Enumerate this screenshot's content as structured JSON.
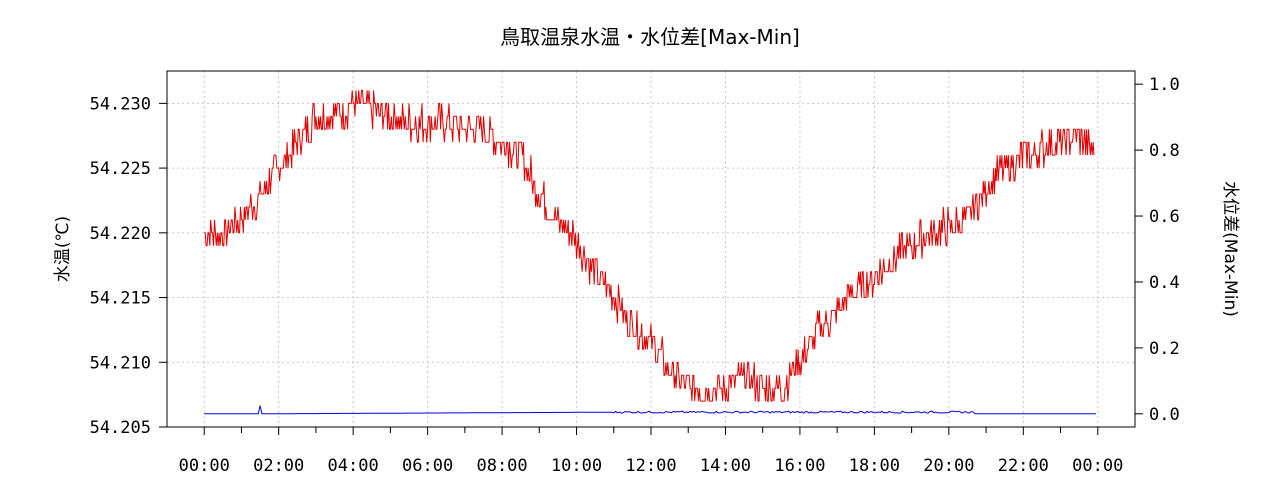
{
  "chart_data": {
    "type": "line",
    "title": "鳥取温泉水温・水位差[Max-Min]",
    "ylabel_left": "水温(℃)",
    "ylabel_right": "水位差(Max-Min)",
    "x_ticks": [
      "00:00",
      "02:00",
      "04:00",
      "06:00",
      "08:00",
      "10:00",
      "12:00",
      "14:00",
      "16:00",
      "18:00",
      "20:00",
      "22:00",
      "00:00"
    ],
    "x_range_hours": [
      -1,
      25
    ],
    "y_left": {
      "range": [
        54.205,
        54.2325
      ],
      "ticks": [
        "54.205",
        "54.210",
        "54.215",
        "54.220",
        "54.225",
        "54.230"
      ],
      "tick_values": [
        54.205,
        54.21,
        54.215,
        54.22,
        54.225,
        54.23
      ]
    },
    "y_right": {
      "range": [
        -0.04,
        1.04
      ],
      "ticks": [
        "0.0",
        "0.2",
        "0.4",
        "0.6",
        "0.8",
        "1.0"
      ],
      "tick_values": [
        0.0,
        0.2,
        0.4,
        0.6,
        0.8,
        1.0
      ]
    },
    "grid": true,
    "series": [
      {
        "axis": "left",
        "color": "#e00000",
        "x_hours": [
          0,
          0.5,
          1,
          1.5,
          2,
          2.5,
          3,
          3.5,
          4,
          4.5,
          5,
          5.5,
          6,
          6.5,
          7,
          7.5,
          8,
          8.5,
          9,
          9.5,
          10,
          10.5,
          11,
          11.5,
          12,
          12.5,
          13,
          13.5,
          14,
          14.5,
          15,
          15.5,
          16,
          16.5,
          17,
          17.5,
          18,
          18.5,
          19,
          19.5,
          20,
          20.5,
          21,
          21.5,
          22,
          22.5,
          23,
          23.5,
          24
        ],
        "values": [
          54.22,
          54.22,
          54.221,
          54.223,
          54.225,
          54.227,
          54.229,
          54.229,
          54.23,
          54.2295,
          54.229,
          54.2285,
          54.2285,
          54.2285,
          54.228,
          54.228,
          54.227,
          54.226,
          54.223,
          54.221,
          54.2195,
          54.217,
          54.215,
          54.213,
          54.2115,
          54.2095,
          54.208,
          54.208,
          54.208,
          54.209,
          54.208,
          54.208,
          54.21,
          54.2125,
          54.214,
          54.2155,
          54.2165,
          54.218,
          54.219,
          54.22,
          54.2205,
          54.221,
          54.2235,
          54.225,
          54.226,
          54.2265,
          54.227,
          54.2275,
          54.226
        ]
      },
      {
        "axis": "right",
        "color": "#0000e0",
        "x_hours": [
          0,
          1.45,
          1.5,
          1.55,
          11,
          20.7
        ],
        "values": [
          0.0,
          0.0,
          0.025,
          0.0,
          0.005,
          0.005
        ]
      }
    ]
  }
}
